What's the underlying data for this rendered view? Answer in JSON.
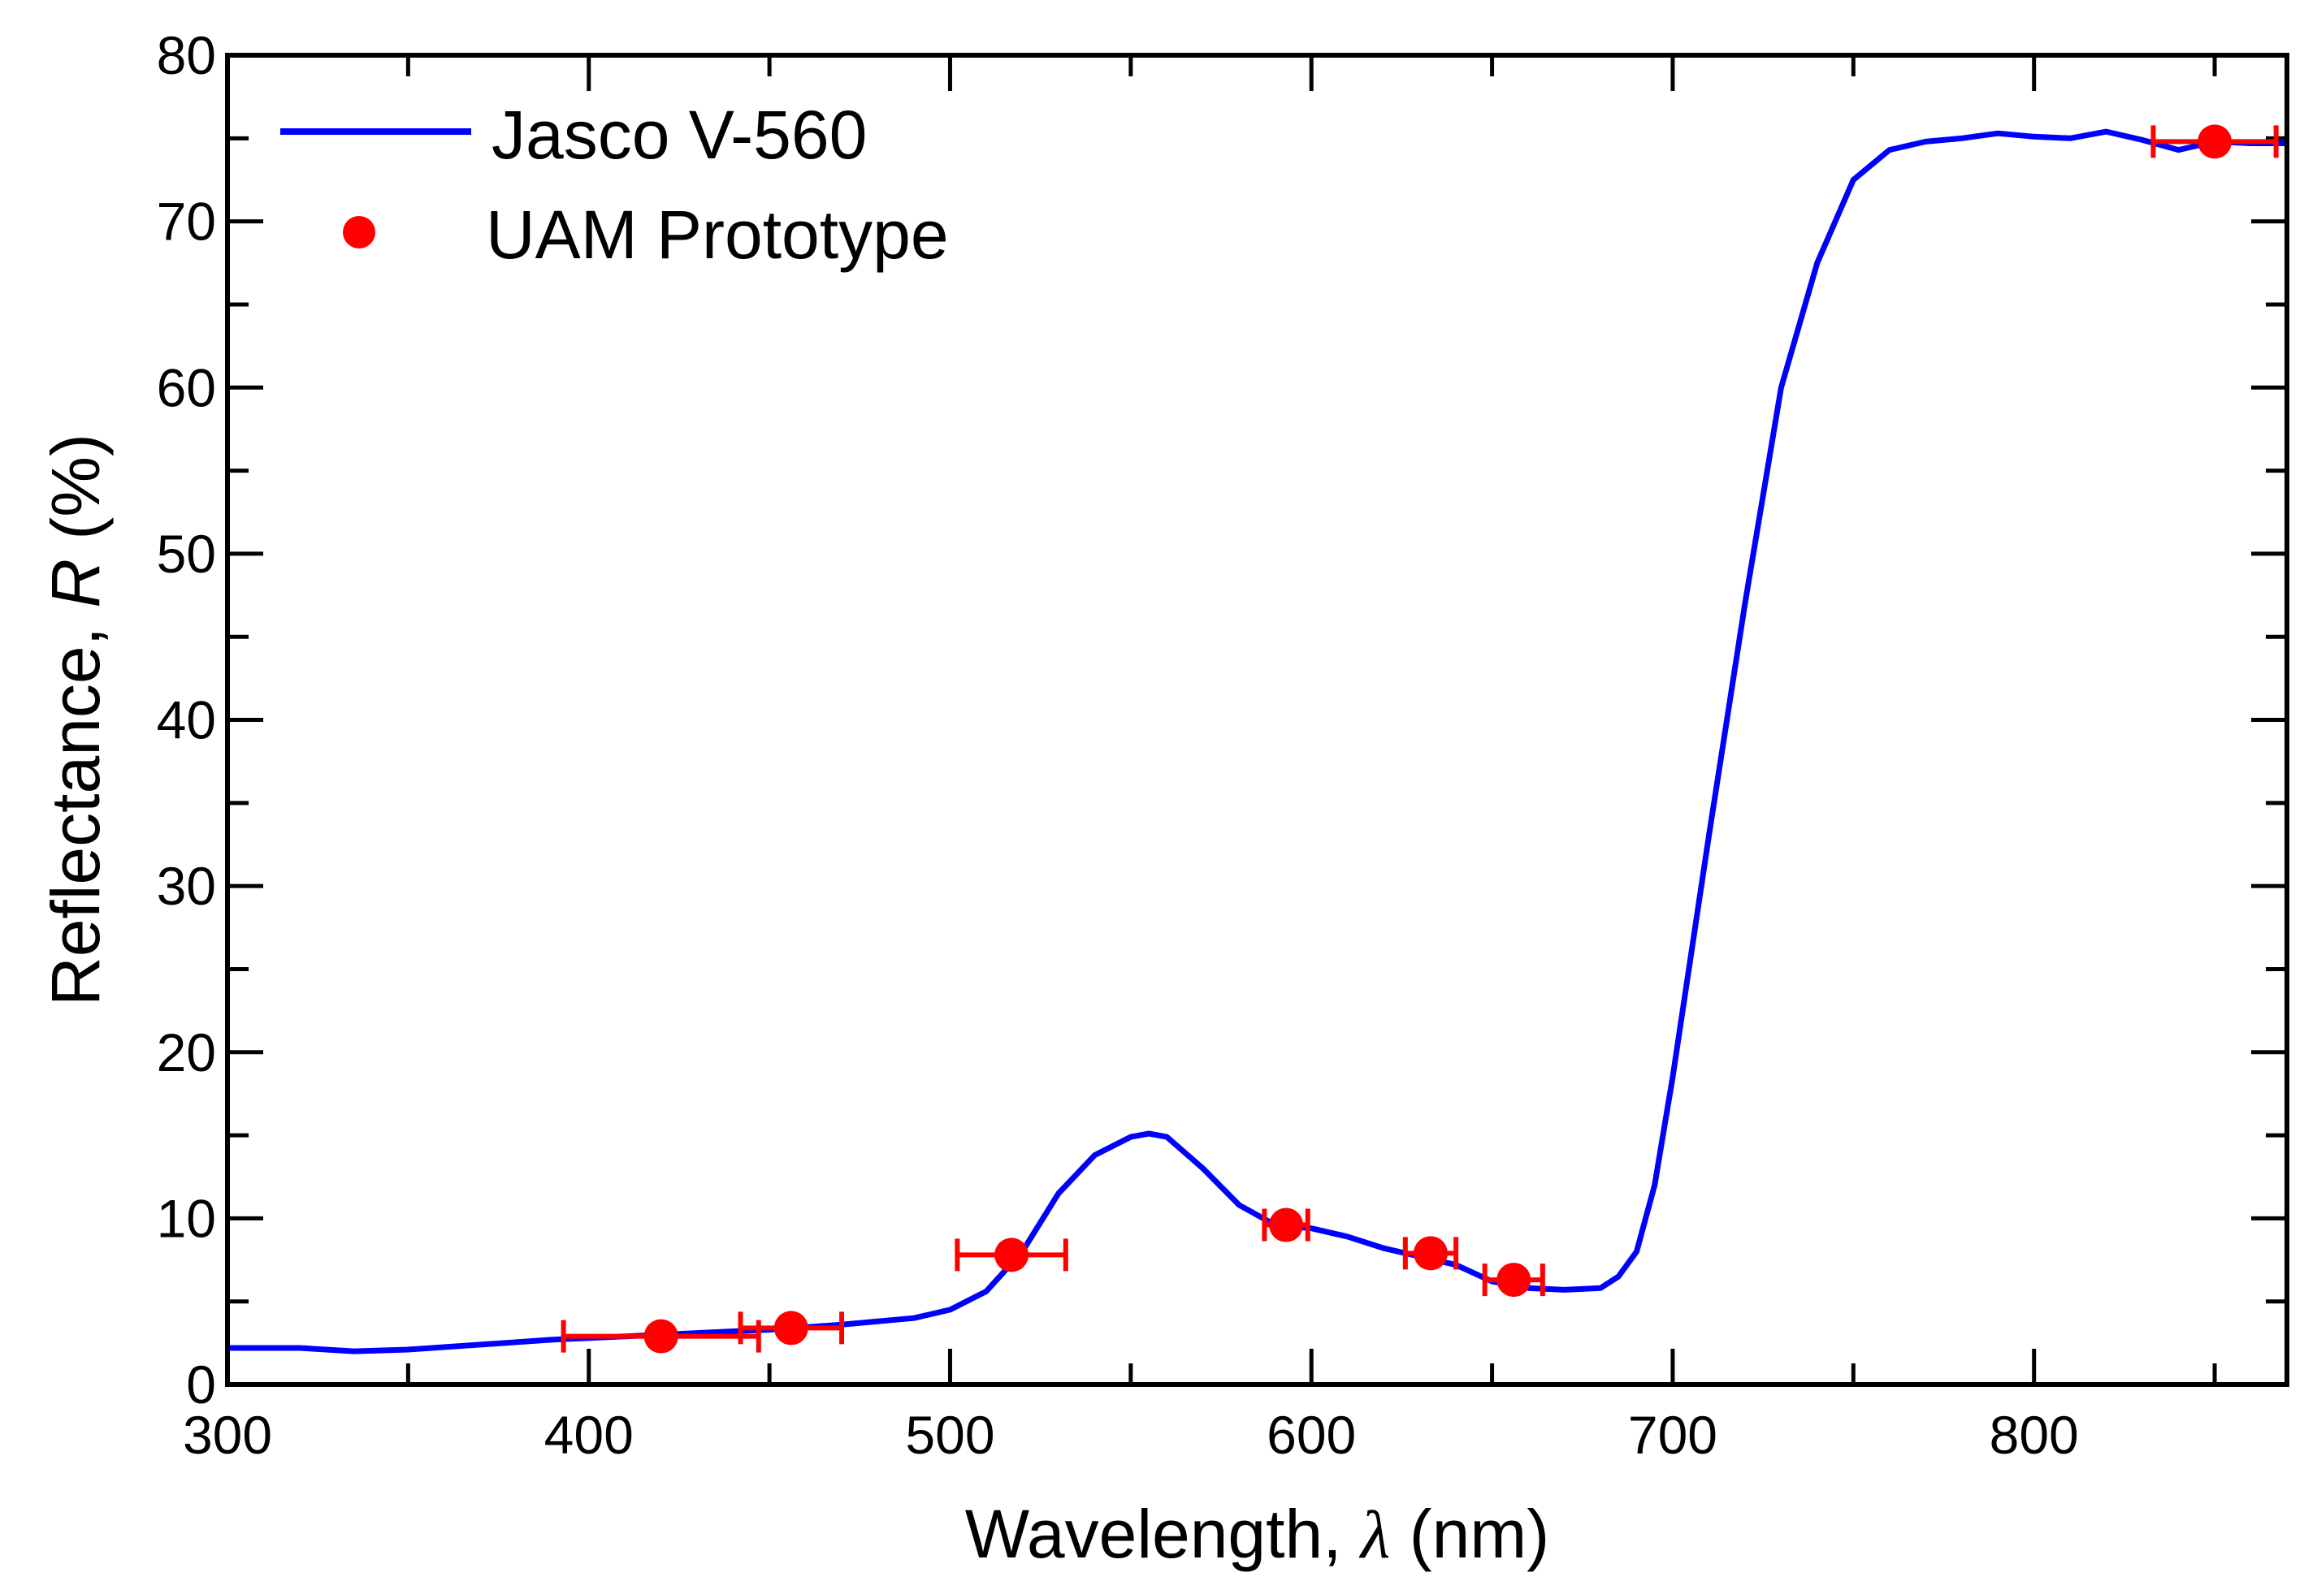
{
  "chart_data": {
    "type": "line",
    "title": "",
    "xlabel": {
      "prefix": "Wavelength, ",
      "symbol": "λ",
      "suffix": " (nm)"
    },
    "ylabel": {
      "prefix": "Reflectance, ",
      "symbol": "R",
      "suffix": " (%)"
    },
    "xlim": [
      300,
      870
    ],
    "ylim": [
      0,
      80
    ],
    "xticks": [
      300,
      400,
      500,
      600,
      700,
      800
    ],
    "yticks": [
      0,
      10,
      20,
      30,
      40,
      50,
      60,
      70,
      80
    ],
    "legend_position": "top-left",
    "series": [
      {
        "name": "Jasco V-560",
        "kind": "line",
        "color": "#0000ff",
        "points": [
          [
            300,
            2.2
          ],
          [
            320,
            2.2
          ],
          [
            335,
            2.0
          ],
          [
            350,
            2.1
          ],
          [
            370,
            2.4
          ],
          [
            390,
            2.7
          ],
          [
            410,
            2.9
          ],
          [
            430,
            3.1
          ],
          [
            450,
            3.3
          ],
          [
            470,
            3.6
          ],
          [
            490,
            4.0
          ],
          [
            500,
            4.5
          ],
          [
            510,
            5.6
          ],
          [
            520,
            8.0
          ],
          [
            530,
            11.5
          ],
          [
            540,
            13.8
          ],
          [
            550,
            14.9
          ],
          [
            555,
            15.1
          ],
          [
            560,
            14.9
          ],
          [
            570,
            13.0
          ],
          [
            580,
            10.8
          ],
          [
            590,
            9.6
          ],
          [
            600,
            9.4
          ],
          [
            610,
            8.9
          ],
          [
            620,
            8.2
          ],
          [
            630,
            7.7
          ],
          [
            640,
            7.2
          ],
          [
            650,
            6.2
          ],
          [
            660,
            5.8
          ],
          [
            670,
            5.7
          ],
          [
            680,
            5.8
          ],
          [
            685,
            6.5
          ],
          [
            690,
            8.0
          ],
          [
            695,
            12.0
          ],
          [
            700,
            18.5
          ],
          [
            710,
            33.0
          ],
          [
            720,
            47.0
          ],
          [
            730,
            60.0
          ],
          [
            740,
            67.5
          ],
          [
            750,
            72.5
          ],
          [
            760,
            74.3
          ],
          [
            770,
            74.8
          ],
          [
            780,
            75.0
          ],
          [
            790,
            75.3
          ],
          [
            800,
            75.1
          ],
          [
            810,
            75.0
          ],
          [
            820,
            75.4
          ],
          [
            830,
            74.9
          ],
          [
            840,
            74.3
          ],
          [
            850,
            74.8
          ],
          [
            860,
            74.7
          ],
          [
            870,
            74.7
          ]
        ]
      },
      {
        "name": "UAM Prototype",
        "kind": "scatter",
        "color": "#ff0000",
        "points": [
          {
            "x": 420,
            "y": 2.9,
            "xerr": 27
          },
          {
            "x": 456,
            "y": 3.4,
            "xerr": 14
          },
          {
            "x": 517,
            "y": 7.8,
            "xerr": 15
          },
          {
            "x": 593,
            "y": 9.6,
            "xerr": 6
          },
          {
            "x": 633,
            "y": 7.9,
            "xerr": 7
          },
          {
            "x": 656,
            "y": 6.3,
            "xerr": 8
          },
          {
            "x": 850,
            "y": 74.8,
            "xerr": 17
          }
        ]
      }
    ]
  }
}
